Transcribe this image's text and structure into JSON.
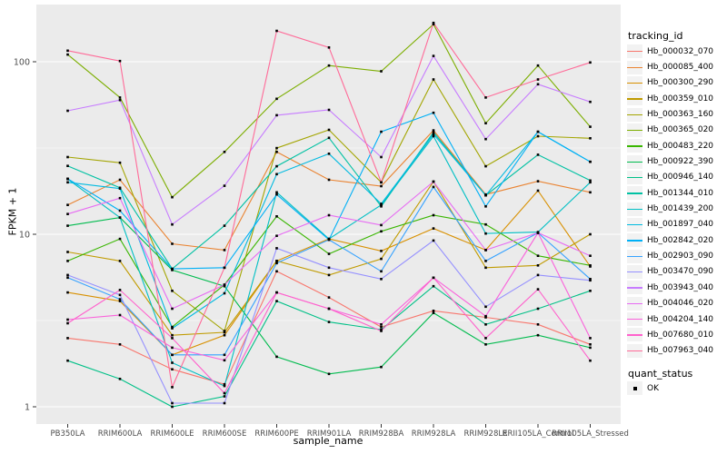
{
  "figure": {
    "background": "#FFFFFF",
    "panel_background": "#EBEBEB",
    "grid_color": "#FFFFFF",
    "tick_color": "#333333",
    "tick_label_color": "#4D4D4D",
    "legend_key_background": "#F2F2F2"
  },
  "chart_data": {
    "type": "line",
    "title": "",
    "xlabel": "sample_name",
    "ylabel": "FPKM + 1",
    "y_scale": "log10",
    "y_ticks": [
      1,
      10,
      100
    ],
    "y_minor_ticks": [
      3.1623,
      31.623
    ],
    "ylim": [
      0.78,
      215
    ],
    "grid": true,
    "legend_position": "right",
    "legend_title": "tracking_id",
    "marker": {
      "shape": "square",
      "color": "#000000",
      "size": 2.6
    },
    "categories": [
      "PB350LA",
      "RRIM600LA",
      "RRIM600LE",
      "RRIM600SE",
      "RRIM600PE",
      "RRIM901LA",
      "RRIM928BA",
      "RRIM928LA",
      "RRIM928LE",
      "RRII105LA_Control",
      "RRII105LA_Stressed"
    ],
    "series": [
      {
        "name": "Hb_000032_070",
        "color": "#F8766D",
        "values": [
          2.5,
          2.3,
          1.65,
          1.35,
          6.1,
          4.3,
          2.9,
          3.6,
          3.3,
          3.0,
          2.3
        ]
      },
      {
        "name": "Hb_000085_400",
        "color": "#EA8331",
        "values": [
          14.8,
          20.7,
          8.8,
          8.1,
          30,
          20.7,
          19,
          40,
          17,
          20.3,
          17.5
        ]
      },
      {
        "name": "Hb_000300_290",
        "color": "#D89000",
        "values": [
          4.6,
          4.1,
          2.0,
          2.6,
          7.0,
          9.4,
          8.0,
          10.8,
          8.1,
          17.9,
          6.5
        ]
      },
      {
        "name": "Hb_000359_010",
        "color": "#C09B00",
        "values": [
          7.9,
          7.0,
          2.6,
          2.7,
          7.0,
          5.8,
          7.2,
          20.2,
          6.4,
          6.6,
          10.0
        ]
      },
      {
        "name": "Hb_000363_160",
        "color": "#A3A500",
        "values": [
          28,
          26,
          4.7,
          2.75,
          31.6,
          40.3,
          20,
          79,
          24.8,
          37,
          36
        ]
      },
      {
        "name": "Hb_000365_020",
        "color": "#7CAE00",
        "values": [
          110,
          62,
          16.4,
          30,
          61,
          95,
          88,
          165,
          44,
          95,
          42
        ]
      },
      {
        "name": "Hb_000483_220",
        "color": "#39B600",
        "values": [
          7.0,
          9.4,
          2.9,
          5.1,
          12.7,
          7.7,
          10.4,
          12.9,
          11.4,
          7.5,
          6.6
        ]
      },
      {
        "name": "Hb_000922_390",
        "color": "#00BB4E",
        "values": [
          11.2,
          12.5,
          6.2,
          5.0,
          1.95,
          1.55,
          1.7,
          3.5,
          2.3,
          2.6,
          2.2
        ]
      },
      {
        "name": "Hb_000946_140",
        "color": "#00C087",
        "values": [
          1.85,
          1.45,
          1.0,
          1.15,
          4.1,
          3.1,
          2.8,
          5.0,
          3.0,
          3.7,
          4.7
        ]
      },
      {
        "name": "Hb_001344_010",
        "color": "#00C1A3",
        "values": [
          24.9,
          18.6,
          6.3,
          11.2,
          24.8,
          36.2,
          14.5,
          39,
          16.8,
          28.9,
          20.5
        ]
      },
      {
        "name": "Hb_001439_200",
        "color": "#00BFC4",
        "values": [
          20.9,
          12.5,
          1.8,
          1.32,
          17.5,
          9.4,
          14.8,
          37,
          10.1,
          10.3,
          20
        ]
      },
      {
        "name": "Hb_001897_040",
        "color": "#00BAE0",
        "values": [
          20,
          18.4,
          2.85,
          4.55,
          22.3,
          29.3,
          15,
          38,
          16.8,
          39.3,
          26.3
        ]
      },
      {
        "name": "Hb_002842_020",
        "color": "#00B0F6",
        "values": [
          21,
          13.7,
          6.3,
          6.4,
          17.0,
          9.3,
          39.3,
          50.6,
          14.5,
          39.3,
          26.3
        ]
      },
      {
        "name": "Hb_002903_090",
        "color": "#35A2FF",
        "values": [
          5.6,
          4.2,
          2.0,
          2.0,
          6.8,
          9.3,
          6.1,
          18.8,
          7.0,
          10.2,
          5.5
        ]
      },
      {
        "name": "Hb_003470_090",
        "color": "#9590FF",
        "values": [
          5.8,
          4.45,
          1.05,
          1.05,
          8.3,
          6.4,
          5.5,
          9.2,
          3.8,
          5.8,
          5.4
        ]
      },
      {
        "name": "Hb_003943_040",
        "color": "#C77CFF",
        "values": [
          52,
          60,
          11.4,
          19.1,
          49,
          52.6,
          28,
          108,
          35.6,
          74,
          58.5
        ]
      },
      {
        "name": "Hb_004046_020",
        "color": "#E76BF3",
        "values": [
          13.1,
          16.2,
          3.7,
          5.1,
          9.8,
          12.9,
          11.3,
          20.2,
          8.1,
          10.2,
          7.5
        ]
      },
      {
        "name": "Hb_004204_140",
        "color": "#FA62DB",
        "values": [
          3.2,
          3.4,
          2.2,
          1.86,
          4.6,
          3.7,
          3.0,
          5.6,
          3.35,
          10.2,
          2.5
        ]
      },
      {
        "name": "Hb_007680_010",
        "color": "#FF61CC",
        "values": [
          3.05,
          4.75,
          2.5,
          1.2,
          4.6,
          3.7,
          2.75,
          5.6,
          2.5,
          4.8,
          1.85
        ]
      },
      {
        "name": "Hb_007963_040",
        "color": "#FF6A98",
        "values": [
          116,
          101,
          1.3,
          6.4,
          151,
          121,
          20,
          168,
          62,
          79,
          99
        ]
      }
    ],
    "quant_legend": {
      "title": "quant_status",
      "items": [
        {
          "label": "OK",
          "shape": "square",
          "color": "#000000"
        }
      ]
    }
  }
}
